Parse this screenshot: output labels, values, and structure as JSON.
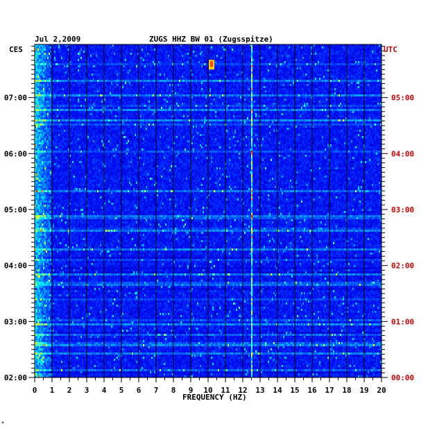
{
  "header": {
    "date": "Jul 2,2009",
    "station": "ZUGS HHZ BW 01 (Zugsspitze)",
    "left_zone": "CES",
    "right_zone": "UTC"
  },
  "footer": {
    "mark": "*"
  },
  "chart_data": {
    "type": "heatmap",
    "xlabel": "FREQUENCY (HZ)",
    "x_ticks": [
      "0",
      "1",
      "2",
      "3",
      "4",
      "5",
      "6",
      "7",
      "8",
      "9",
      "10",
      "11",
      "12",
      "13",
      "14",
      "15",
      "16",
      "17",
      "18",
      "19",
      "20"
    ],
    "xlim": [
      0,
      20
    ],
    "y_ticks_left": [
      "07:00",
      "06:00",
      "05:00",
      "04:00",
      "03:00",
      "02:00"
    ],
    "y_ticks_right": [
      "05:00",
      "04:00",
      "03:00",
      "02:00",
      "01:00",
      "00:00"
    ],
    "y_tick_values_hours_local": [
      7,
      6,
      5,
      4,
      3,
      2
    ],
    "ylim_hours_local": [
      2,
      7.95
    ],
    "grid": true,
    "colors": {
      "axis_left": "#000000",
      "axis_right": "#cc0000",
      "background": "#0000cc",
      "grid": "#000000"
    },
    "features": [
      {
        "desc": "strong low-frequency noise",
        "freq": [
          0,
          1
        ]
      },
      {
        "desc": "persistent narrow line",
        "freq": 12.5
      },
      {
        "desc": "burst",
        "freq": 10.2,
        "hour": 7.6
      }
    ]
  }
}
